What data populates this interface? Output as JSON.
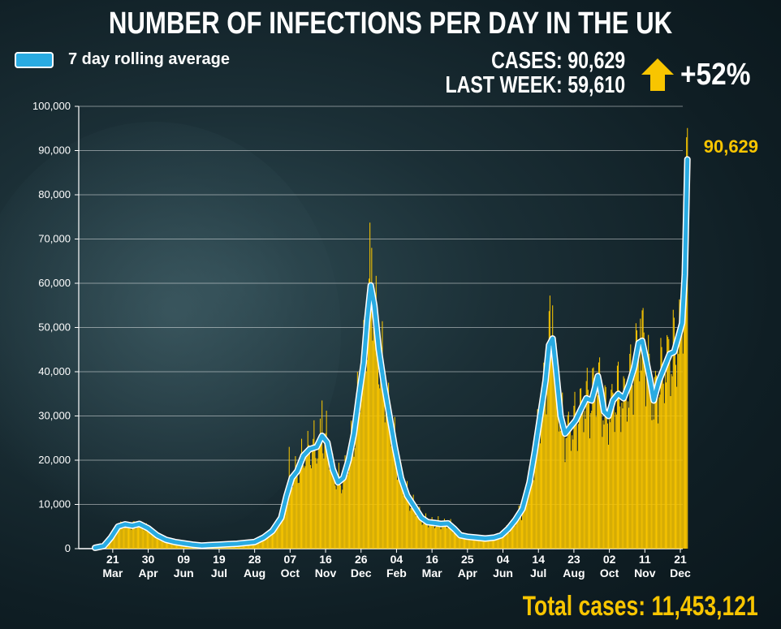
{
  "header": {
    "title": "NUMBER OF INFECTIONS PER DAY IN THE UK",
    "legend_label": "7 day rolling average",
    "cases_line": "CASES: 90,629",
    "last_week_line": "LAST WEEK: 59,610",
    "change": "+52%",
    "total": "Total cases: 11,453,121"
  },
  "colors": {
    "bars": "#f8c500",
    "line": "#29abe2",
    "line_outline": "#ffffff",
    "annotation": "#f8c500",
    "arrow": "#f8c500"
  },
  "icons": {
    "change_arrow": "up-arrow-icon"
  },
  "chart_data": {
    "type": "bar",
    "title": "NUMBER OF INFECTIONS PER DAY IN THE UK",
    "xlabel": "",
    "ylabel": "",
    "ylim": [
      0,
      100000
    ],
    "yticks": [
      0,
      10000,
      20000,
      30000,
      40000,
      50000,
      60000,
      70000,
      80000,
      90000,
      100000
    ],
    "ytick_labels": [
      "0",
      "10,000",
      "20,000",
      "30,000",
      "40,000",
      "50,000",
      "60,000",
      "70,000",
      "80,000",
      "90,000",
      "100,000"
    ],
    "grid": true,
    "x_range_days": [
      0,
      660
    ],
    "xticks": [
      {
        "day": 20,
        "top": "21",
        "bottom": "Mar"
      },
      {
        "day": 60,
        "top": "30",
        "bottom": "Apr"
      },
      {
        "day": 100,
        "top": "09",
        "bottom": "Jun"
      },
      {
        "day": 140,
        "top": "19",
        "bottom": "Jul"
      },
      {
        "day": 180,
        "top": "28",
        "bottom": "Aug"
      },
      {
        "day": 220,
        "top": "07",
        "bottom": "Oct"
      },
      {
        "day": 260,
        "top": "16",
        "bottom": "Nov"
      },
      {
        "day": 300,
        "top": "26",
        "bottom": "Dec"
      },
      {
        "day": 340,
        "top": "04",
        "bottom": "Feb"
      },
      {
        "day": 380,
        "top": "16",
        "bottom": "Mar"
      },
      {
        "day": 420,
        "top": "25",
        "bottom": "Apr"
      },
      {
        "day": 460,
        "top": "04",
        "bottom": "Jun"
      },
      {
        "day": 500,
        "top": "14",
        "bottom": "Jul"
      },
      {
        "day": 540,
        "top": "23",
        "bottom": "Aug"
      },
      {
        "day": 580,
        "top": "02",
        "bottom": "Oct"
      },
      {
        "day": 620,
        "top": "11",
        "bottom": "Nov"
      },
      {
        "day": 660,
        "top": "21",
        "bottom": "Dec"
      }
    ],
    "series": [
      {
        "name": "7 day rolling average",
        "kind": "line",
        "points": [
          [
            0,
            200
          ],
          [
            10,
            600
          ],
          [
            18,
            2500
          ],
          [
            26,
            5000
          ],
          [
            34,
            5500
          ],
          [
            42,
            5200
          ],
          [
            50,
            5600
          ],
          [
            60,
            4600
          ],
          [
            70,
            3000
          ],
          [
            80,
            2000
          ],
          [
            90,
            1500
          ],
          [
            100,
            1200
          ],
          [
            110,
            900
          ],
          [
            120,
            700
          ],
          [
            130,
            800
          ],
          [
            140,
            900
          ],
          [
            150,
            1000
          ],
          [
            160,
            1100
          ],
          [
            170,
            1300
          ],
          [
            180,
            1500
          ],
          [
            190,
            2500
          ],
          [
            200,
            4000
          ],
          [
            210,
            7000
          ],
          [
            216,
            12000
          ],
          [
            222,
            16000
          ],
          [
            228,
            17500
          ],
          [
            235,
            21000
          ],
          [
            242,
            22500
          ],
          [
            250,
            23000
          ],
          [
            256,
            25500
          ],
          [
            262,
            24000
          ],
          [
            268,
            18000
          ],
          [
            274,
            15000
          ],
          [
            280,
            16000
          ],
          [
            286,
            20000
          ],
          [
            292,
            26000
          ],
          [
            298,
            35000
          ],
          [
            303,
            42000
          ],
          [
            307,
            52000
          ],
          [
            311,
            59500
          ],
          [
            315,
            55000
          ],
          [
            320,
            45000
          ],
          [
            326,
            37000
          ],
          [
            332,
            30000
          ],
          [
            338,
            23000
          ],
          [
            345,
            16000
          ],
          [
            352,
            12000
          ],
          [
            360,
            9500
          ],
          [
            368,
            7000
          ],
          [
            375,
            6000
          ],
          [
            383,
            5800
          ],
          [
            390,
            5600
          ],
          [
            398,
            5700
          ],
          [
            405,
            4500
          ],
          [
            412,
            3000
          ],
          [
            420,
            2700
          ],
          [
            430,
            2500
          ],
          [
            440,
            2300
          ],
          [
            450,
            2500
          ],
          [
            458,
            3000
          ],
          [
            466,
            4500
          ],
          [
            474,
            6500
          ],
          [
            482,
            9000
          ],
          [
            490,
            15000
          ],
          [
            496,
            22000
          ],
          [
            502,
            30000
          ],
          [
            508,
            38000
          ],
          [
            512,
            46000
          ],
          [
            516,
            47500
          ],
          [
            520,
            40000
          ],
          [
            525,
            30000
          ],
          [
            530,
            26000
          ],
          [
            536,
            27500
          ],
          [
            542,
            29000
          ],
          [
            548,
            31500
          ],
          [
            554,
            34000
          ],
          [
            560,
            33500
          ],
          [
            564,
            36500
          ],
          [
            567,
            39000
          ],
          [
            570,
            36000
          ],
          [
            574,
            31000
          ],
          [
            579,
            30000
          ],
          [
            584,
            33500
          ],
          [
            590,
            35000
          ],
          [
            596,
            34000
          ],
          [
            602,
            37000
          ],
          [
            608,
            41000
          ],
          [
            613,
            46500
          ],
          [
            617,
            47000
          ],
          [
            621,
            43000
          ],
          [
            626,
            38000
          ],
          [
            630,
            33500
          ],
          [
            636,
            38000
          ],
          [
            642,
            41000
          ],
          [
            648,
            44000
          ],
          [
            653,
            44500
          ],
          [
            658,
            48000
          ],
          [
            662,
            51000
          ],
          [
            665,
            62000
          ],
          [
            668,
            88000
          ]
        ]
      },
      {
        "name": "daily cases",
        "kind": "bars",
        "peaks": [
          {
            "day": 219,
            "value": 23000
          },
          {
            "day": 256,
            "value": 33500
          },
          {
            "day": 312,
            "value": 68000
          },
          {
            "day": 516,
            "value": 55000
          },
          {
            "day": 615,
            "value": 52000
          },
          {
            "day": 667,
            "value": 93000
          }
        ]
      }
    ],
    "annotations": [
      {
        "text": "90,629",
        "day": 668,
        "value": 90629
      }
    ]
  }
}
